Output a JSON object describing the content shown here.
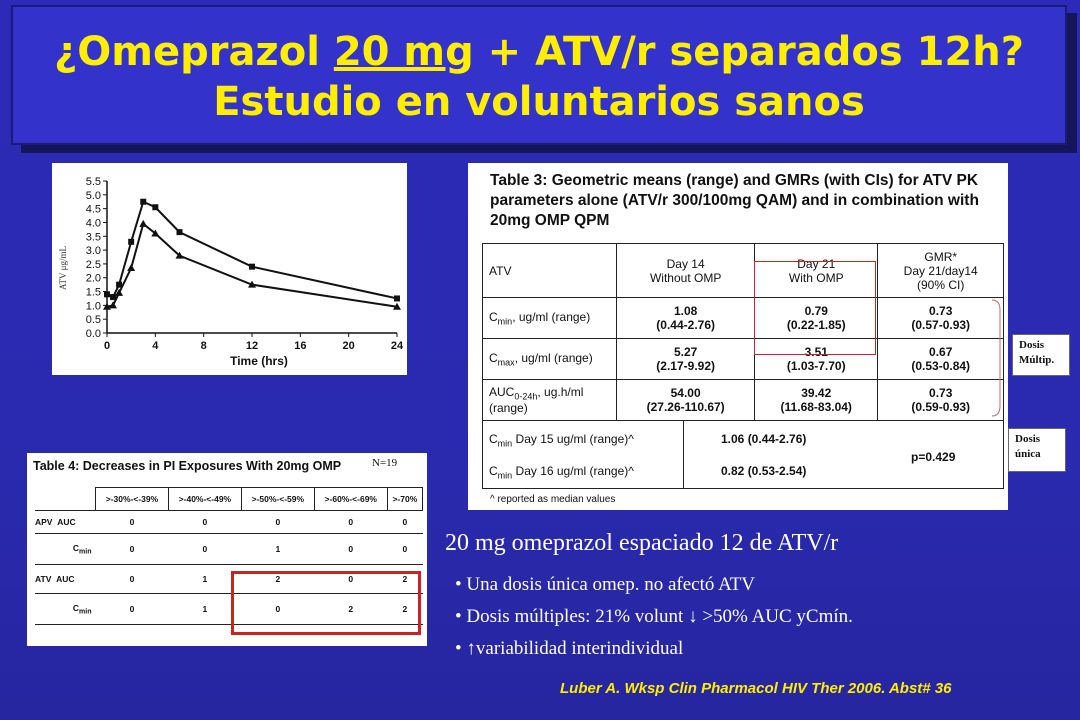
{
  "slide": {
    "title_pre": "¿Omeprazol ",
    "title_underlined": "20 mg",
    "title_post": " + ATV/r  separados 12h?",
    "subtitle": "Estudio en voluntarios sanos",
    "citation": "Luber A. Wksp  Clin Pharmacol HIV Ther 2006. Abst# 36"
  },
  "graph": {
    "ylabel": "ATV μg/mL",
    "xlabel": "Time (hrs)",
    "yticks": [
      "0.0",
      "0.5",
      "1.0",
      "1.5",
      "2.0",
      "2.5",
      "3.0",
      "3.5",
      "4.0",
      "4.5",
      "5.0",
      "5.5"
    ],
    "xticks": [
      "0",
      "4",
      "8",
      "12",
      "16",
      "20",
      "24"
    ]
  },
  "chart_data": {
    "type": "line",
    "xlabel": "Time (hrs)",
    "ylabel": "ATV μg/mL",
    "xlim": [
      0,
      24
    ],
    "ylim": [
      0,
      5.5
    ],
    "series": [
      {
        "marker": "square",
        "x": [
          0,
          0.5,
          1,
          2,
          3,
          4,
          6,
          12,
          24
        ],
        "y": [
          1.4,
          1.3,
          1.75,
          3.3,
          4.75,
          4.55,
          3.65,
          2.4,
          1.25
        ]
      },
      {
        "marker": "triangle",
        "x": [
          0,
          0.5,
          1,
          2,
          3,
          4,
          6,
          12,
          24
        ],
        "y": [
          0.95,
          1.0,
          1.45,
          2.35,
          3.95,
          3.6,
          2.8,
          1.75,
          0.95
        ]
      }
    ]
  },
  "table3": {
    "title": "Table 3: Geometric means (range) and GMRs (with CIs) for ATV PK parameters alone (ATV/r 300/100mg QAM) and in combination with 20mg OMP QPM",
    "col_atv": "ATV",
    "col_day14_a": "Day 14",
    "col_day14_b": "Without OMP",
    "col_day21_a": "Day 21",
    "col_day21_b": "With OMP",
    "col_gmr_a": "GMR*",
    "col_gmr_b": "Day 21/day14",
    "col_gmr_c": "(90% CI)",
    "rows": [
      {
        "label_main": "C",
        "label_sub": "min",
        "label_rest": ", ug/ml (range)",
        "label_rest2": "",
        "v1": "1.08",
        "r1": "(0.44-2.76)",
        "v2": "0.79",
        "r2": "(0.22-1.85)",
        "v3": "0.73",
        "r3": "(0.57-0.93)"
      },
      {
        "label_main": "C",
        "label_sub": "max",
        "label_rest": ", ug/ml (range)",
        "label_rest2": "",
        "v1": "5.27",
        "r1": "(2.17-9.92)",
        "v2": "3.51",
        "r2": "(1.03-7.70)",
        "v3": "0.67",
        "r3": "(0.53-0.84)"
      },
      {
        "label_main": "AUC",
        "label_sub": "0-24h",
        "label_rest": ", ug.h/ml",
        "label_rest2": "(range)",
        "v1": "54.00",
        "r1": "(27.26-110.67)",
        "v2": "39.42",
        "r2": "(11.68-83.04)",
        "v3": "0.73",
        "r3": "(0.59-0.93)"
      }
    ],
    "single_dose": [
      {
        "label_main": "C",
        "label_sub": "min",
        "label_rest": " Day 15 ug/ml (range)^",
        "value": "1.06 (0.44-2.76)"
      },
      {
        "label_main": "C",
        "label_sub": "min",
        "label_rest": " Day 16 ug/ml (range)^",
        "value": "0.82 (0.53-2.54)"
      }
    ],
    "p_value": "p=0.429",
    "footnote": "^ reported as median values"
  },
  "labels": {
    "dosis_multip_a": "Dosis",
    "dosis_multip_b": "Múltip.",
    "dosis_unica_a": "Dosis",
    "dosis_unica_b": "única"
  },
  "table4": {
    "title": "Table 4: Decreases in PI Exposures With 20mg OMP",
    "n_label": "N=19",
    "headers": [
      ">-30%-<-39%",
      ">-40%-<-49%",
      ">-50%-<-59%",
      ">-60%-<-69%",
      ">-70%"
    ],
    "rows": [
      {
        "drug": "APV",
        "param_main": "AUC",
        "param_sub": "",
        "values": [
          "0",
          "0",
          "0",
          "0",
          "0"
        ]
      },
      {
        "drug": "",
        "param_main": "C",
        "param_sub": "min",
        "values": [
          "0",
          "0",
          "1",
          "0",
          "0"
        ]
      },
      {
        "drug": "ATV",
        "param_main": "AUC",
        "param_sub": "",
        "values": [
          "0",
          "1",
          "2",
          "0",
          "2"
        ]
      },
      {
        "drug": "",
        "param_main": "C",
        "param_sub": "min",
        "values": [
          "0",
          "1",
          "0",
          "2",
          "2"
        ]
      }
    ]
  },
  "summary": {
    "heading": "20 mg omeprazol espaciado 12 de ATV/r",
    "bullets": [
      "• Una dosis única omep. no afectó ATV",
      "• Dosis múltiples: 21% volunt ↓ >50% AUC yCmín.",
      "• ↑variabilidad interindividual"
    ]
  },
  "colors": {
    "title_text": "#ffee00",
    "background": "#2b2bb8",
    "highlight": "#cc2222"
  }
}
